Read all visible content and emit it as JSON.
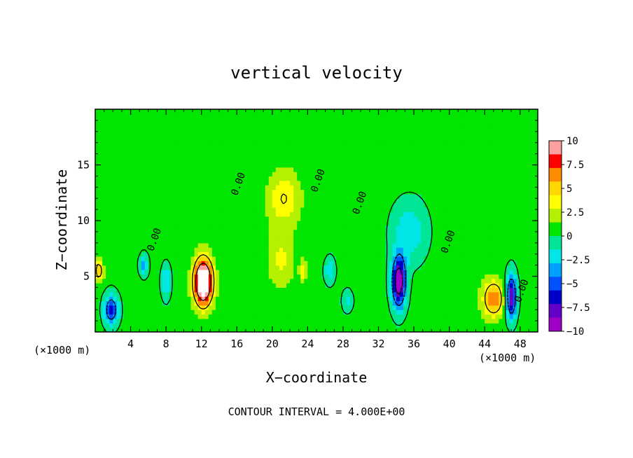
{
  "chart_data": {
    "type": "heatmap",
    "title": "vertical velocity",
    "xlabel": "X−coordinate",
    "ylabel": "Z−coordinate",
    "x_unit_left": "(×1000 m)",
    "x_unit_right": "(×1000 m)",
    "footer": "CONTOUR INTERVAL = 4.000E+00",
    "xlim": [
      0,
      50
    ],
    "ylim": [
      0,
      20
    ],
    "x_ticks": [
      4,
      8,
      12,
      16,
      20,
      24,
      28,
      32,
      36,
      40,
      44,
      48
    ],
    "y_ticks": [
      5,
      10,
      15
    ],
    "x_tick_labels": [
      "4",
      "8",
      "12",
      "16",
      "20",
      "24",
      "28",
      "32",
      "36",
      "40",
      "44",
      "48"
    ],
    "y_tick_labels": [
      "5",
      "10",
      "15"
    ],
    "colorbar": {
      "levels": [
        10,
        7.5,
        5,
        2.5,
        0,
        -2.5,
        -5,
        -7.5,
        -10
      ],
      "labels": [
        "10",
        "7.5",
        "5",
        "2.5",
        "0",
        "−2.5",
        "−5",
        "−7.5",
        "−10"
      ],
      "colors": [
        "#ffa0a0",
        "#ff0000",
        "#ff8c00",
        "#ffd700",
        "#ffff00",
        "#b4f000",
        "#00e600",
        "#00e696",
        "#00e6e6",
        "#00a0ff",
        "#0050ff",
        "#0000c8",
        "#6400c8",
        "#a000c8"
      ]
    },
    "contour_labels": [
      {
        "x": 7.0,
        "z": 8.2,
        "text": "0.00"
      },
      {
        "x": 16.5,
        "z": 13.2,
        "text": "0.00"
      },
      {
        "x": 25.5,
        "z": 13.5,
        "text": "0.00"
      },
      {
        "x": 30.2,
        "z": 11.5,
        "text": "0.00"
      },
      {
        "x": 40.2,
        "z": 8.0,
        "text": "0.00"
      },
      {
        "x": 48.5,
        "z": 3.6,
        "text": "0.00"
      }
    ],
    "features": [
      {
        "x": 12.2,
        "z": 4.5,
        "w": 2.4,
        "value": 15,
        "sx": 1.0,
        "sz": 2.0
      },
      {
        "x": 21.3,
        "z": 12.0,
        "w": 4.2,
        "value": 3.5,
        "sx": 1.8,
        "sz": 2.4
      },
      {
        "x": 21.0,
        "z": 6.5,
        "w": 3.0,
        "value": 2.5,
        "sx": 1.5,
        "sz": 2.5
      },
      {
        "x": 34.3,
        "z": 4.5,
        "w": 2.2,
        "value": -11,
        "sx": 0.8,
        "sz": 2.3
      },
      {
        "x": 35.5,
        "z": 9.0,
        "w": 5.0,
        "value": -3.0,
        "sx": 2.0,
        "sz": 2.8
      },
      {
        "x": 45.0,
        "z": 3.0,
        "w": 4.0,
        "value": 6.5,
        "sx": 1.2,
        "sz": 1.6
      },
      {
        "x": 47.0,
        "z": 3.2,
        "w": 1.0,
        "value": -9,
        "sx": 0.6,
        "sz": 2.0
      },
      {
        "x": 1.8,
        "z": 2.0,
        "w": 1.5,
        "value": -7,
        "sx": 0.8,
        "sz": 1.4
      },
      {
        "x": 0.4,
        "z": 5.5,
        "w": 1.0,
        "value": 5,
        "sx": 0.5,
        "sz": 1.0
      },
      {
        "x": 5.5,
        "z": 6.0,
        "w": 1.5,
        "value": -4,
        "sx": 0.5,
        "sz": 1.0
      },
      {
        "x": 8.0,
        "z": 4.5,
        "w": 1.5,
        "value": -4,
        "sx": 0.5,
        "sz": 1.5
      },
      {
        "x": 26.5,
        "z": 5.5,
        "w": 1.5,
        "value": -3,
        "sx": 0.6,
        "sz": 1.2
      },
      {
        "x": 23.5,
        "z": 5.5,
        "w": 1.5,
        "value": 3,
        "sx": 0.4,
        "sz": 1.0
      },
      {
        "x": 28.5,
        "z": 2.8,
        "w": 1.5,
        "value": -2.5,
        "sx": 0.6,
        "sz": 1.0
      }
    ]
  }
}
